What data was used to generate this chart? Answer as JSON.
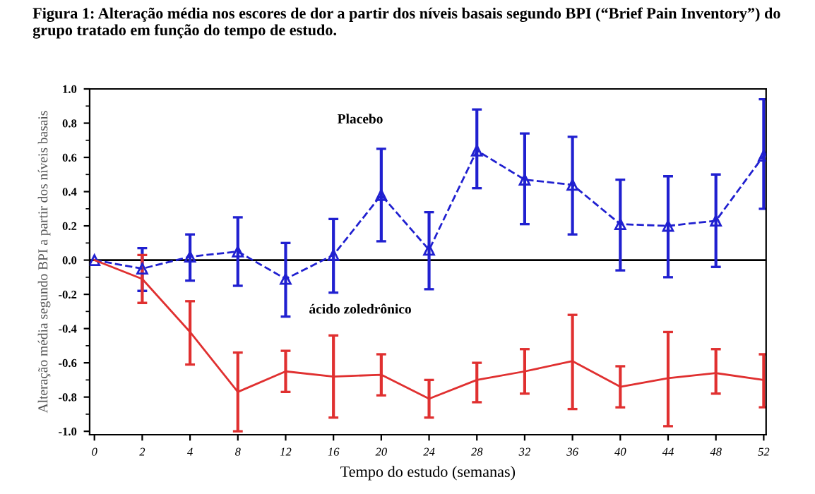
{
  "chart_data": {
    "type": "line",
    "title": "Figura 1: Alteração média nos escores de dor a partir dos níveis basais segundo BPI (“Brief Pain Inventory”) do grupo tratado em função do tempo de estudo.",
    "xlabel": "Tempo do estudo (semanas)",
    "ylabel": "Alteração média segundo BPI a partir dos níveis basais",
    "categories": [
      "0",
      "2",
      "4",
      "8",
      "12",
      "16",
      "20",
      "24",
      "28",
      "32",
      "36",
      "40",
      "44",
      "48",
      "52"
    ],
    "series": [
      {
        "color": "#2020d0",
        "marker": "triangle",
        "line_style": "dashed",
        "values": [
          0,
          -0.05,
          0.02,
          0.05,
          -0.11,
          0.03,
          0.38,
          0.06,
          0.64,
          0.47,
          0.44,
          0.21,
          0.2,
          0.23,
          0.61
        ],
        "errors": [
          null,
          [
            -0.18,
            0.07
          ],
          [
            -0.12,
            0.15
          ],
          [
            -0.15,
            0.25
          ],
          [
            -0.33,
            0.1
          ],
          [
            -0.19,
            0.24
          ],
          [
            0.11,
            0.65
          ],
          [
            -0.17,
            0.28
          ],
          [
            0.42,
            0.88
          ],
          [
            0.21,
            0.74
          ],
          [
            0.15,
            0.72
          ],
          [
            -0.06,
            0.47
          ],
          [
            -0.1,
            0.49
          ],
          [
            -0.04,
            0.5
          ],
          [
            0.3,
            0.94
          ]
        ]
      },
      {
        "color": "#e03030",
        "marker": "none",
        "line_style": "solid",
        "values": [
          0,
          -0.11,
          -0.42,
          -0.77,
          -0.65,
          -0.68,
          -0.67,
          -0.81,
          -0.7,
          -0.65,
          -0.59,
          -0.74,
          -0.69,
          -0.66,
          -0.7
        ],
        "errors": [
          null,
          [
            -0.25,
            0.03
          ],
          [
            -0.61,
            -0.24
          ],
          [
            -1.0,
            -0.54
          ],
          [
            -0.77,
            -0.53
          ],
          [
            -0.92,
            -0.44
          ],
          [
            -0.79,
            -0.55
          ],
          [
            -0.92,
            -0.7
          ],
          [
            -0.83,
            -0.6
          ],
          [
            -0.78,
            -0.52
          ],
          [
            -0.87,
            -0.32
          ],
          [
            -0.86,
            -0.62
          ],
          [
            -0.97,
            -0.42
          ],
          [
            -0.78,
            -0.52
          ],
          [
            -0.86,
            -0.55
          ]
        ]
      }
    ],
    "annotations": [
      "Placebo",
      "ácido zoledrônico"
    ],
    "ref_lines": [
      {
        "axis": "y",
        "value": 0,
        "color": "#000000",
        "line_style": "solid"
      }
    ],
    "ylim": [
      -1.02,
      1.0
    ],
    "yticks": [
      {
        "value": -1.0,
        "label": "-1.0"
      },
      {
        "value": -0.8,
        "label": "-0.8"
      },
      {
        "value": -0.6,
        "label": "-0.6"
      },
      {
        "value": -0.4,
        "label": "-0.4"
      },
      {
        "value": -0.2,
        "label": "-0.2"
      },
      {
        "value": 0,
        "label": "0.0"
      },
      {
        "value": 0.2,
        "label": "0.2"
      },
      {
        "value": 0.4,
        "label": "0.4"
      },
      {
        "value": 0.6,
        "label": "0.6"
      },
      {
        "value": 0.8,
        "label": "0.8"
      },
      {
        "value": 1.0,
        "label": "1.0"
      }
    ],
    "grid": false,
    "legend": false
  }
}
